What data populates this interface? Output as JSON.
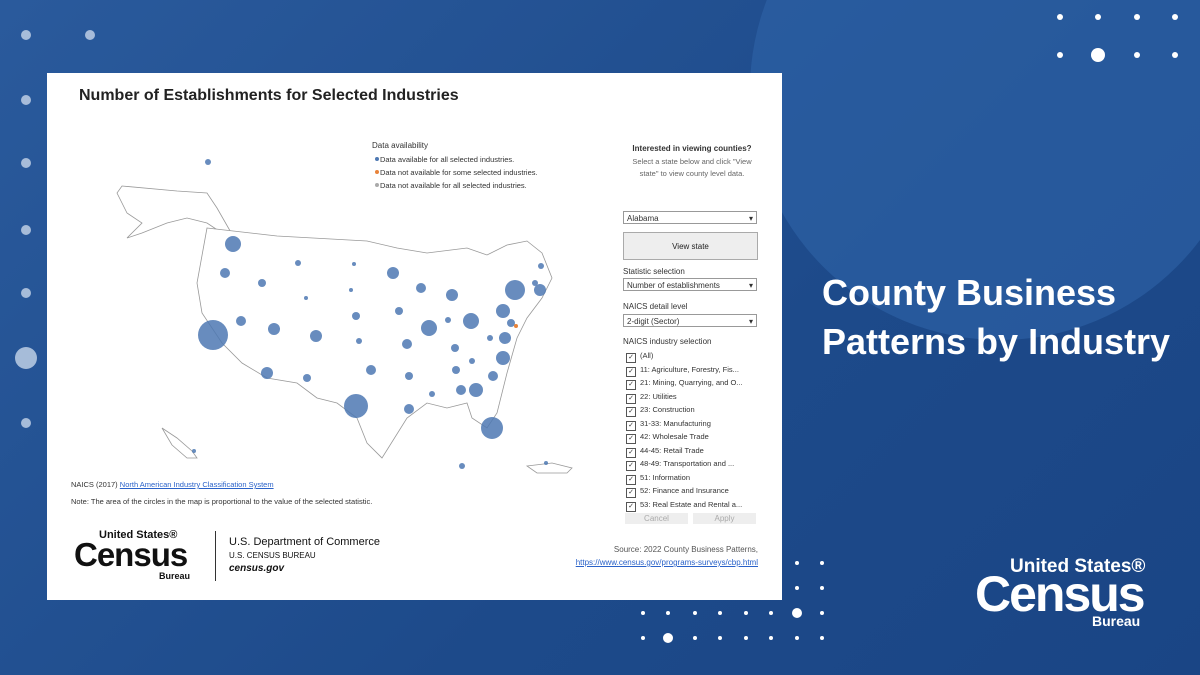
{
  "dashboard": {
    "title": "Number of Establishments for Selected Industries",
    "legend": {
      "title": "Data availability",
      "items": [
        "Data available for all selected industries.",
        "Data not available for some selected industries.",
        "Data not available for all selected industries."
      ]
    },
    "panel": {
      "heading": "Interested in viewing counties?",
      "instructions": "Select a state below and click \"View state\" to view county level data.",
      "state": "Alabama",
      "button": "View state",
      "statistic_label": "Statistic selection",
      "statistic": "Number of establishments",
      "detail_label": "NAICS detail level",
      "detail": "2-digit (Sector)",
      "industry_label": "NAICS industry selection",
      "industries": [
        "(All)",
        "11: Agriculture, Forestry, Fis...",
        "21: Mining, Quarrying, and O...",
        "22: Utilities",
        "23: Construction",
        "31-33: Manufacturing",
        "42: Wholesale Trade",
        "44-45: Retail Trade",
        "48-49: Transportation and ...",
        "51: Information",
        "52: Finance and Insurance",
        "53: Real Estate and Rental a..."
      ],
      "cancel": "Cancel",
      "apply": "Apply"
    },
    "naics_prefix": "NAICS (2017)",
    "naics_link": "North American Industry Classification System",
    "note": "Note: The area of the circles in the map is proportional to the value of the selected statistic.",
    "logo": {
      "top": "United States®",
      "main": "Census",
      "bottom": "Bureau"
    },
    "department": "U.S. Department of Commerce",
    "bureau": "U.S. CENSUS BUREAU",
    "site": "census.gov",
    "source": "Source: 2022 County Business Patterns,",
    "source_url": "https://www.census.gov/programs-surveys/cbp.html"
  },
  "headline": "County Business Patterns by Industry",
  "brand": {
    "top": "United States®",
    "main": "Census",
    "bottom": "Bureau"
  }
}
